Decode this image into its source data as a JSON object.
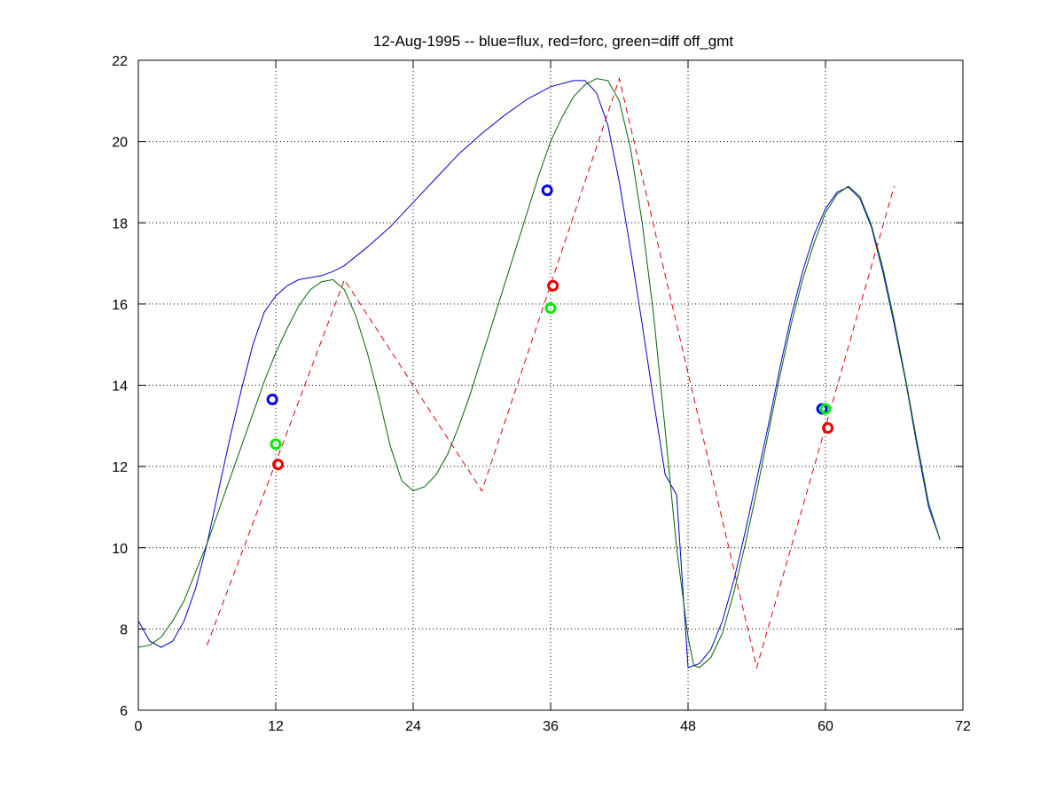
{
  "chart_data": {
    "type": "line",
    "title": "12-Aug-1995 -- blue=flux, red=forc, green=diff off_gmt",
    "xlabel": "",
    "ylabel": "",
    "xlim": [
      0,
      72
    ],
    "ylim": [
      6,
      22
    ],
    "xticks": [
      0,
      12,
      24,
      36,
      48,
      60,
      72
    ],
    "yticks": [
      6,
      8,
      10,
      12,
      14,
      16,
      18,
      20,
      22
    ],
    "grid": true,
    "series": [
      {
        "color": "#0000cc",
        "style": "solid",
        "points": [
          [
            0,
            8.2
          ],
          [
            1,
            7.7
          ],
          [
            2,
            7.55
          ],
          [
            3,
            7.7
          ],
          [
            4,
            8.2
          ],
          [
            5,
            9.0
          ],
          [
            6,
            10.1
          ],
          [
            7,
            11.4
          ],
          [
            8,
            12.7
          ],
          [
            9,
            13.9
          ],
          [
            10,
            15.0
          ],
          [
            11,
            15.8
          ],
          [
            12,
            16.2
          ],
          [
            13,
            16.45
          ],
          [
            14,
            16.6
          ],
          [
            15,
            16.65
          ],
          [
            16,
            16.7
          ],
          [
            17,
            16.8
          ],
          [
            18,
            16.95
          ],
          [
            20,
            17.4
          ],
          [
            22,
            17.9
          ],
          [
            24,
            18.5
          ],
          [
            26,
            19.1
          ],
          [
            28,
            19.7
          ],
          [
            30,
            20.2
          ],
          [
            32,
            20.65
          ],
          [
            34,
            21.05
          ],
          [
            36,
            21.35
          ],
          [
            38,
            21.5
          ],
          [
            39,
            21.5
          ],
          [
            40,
            21.2
          ],
          [
            41,
            20.4
          ],
          [
            42,
            19.0
          ],
          [
            43,
            17.3
          ],
          [
            44,
            15.5
          ],
          [
            45,
            13.6
          ],
          [
            46,
            11.8
          ],
          [
            47,
            11.3
          ],
          [
            48,
            7.05
          ],
          [
            49,
            7.15
          ],
          [
            50,
            7.5
          ],
          [
            51,
            8.2
          ],
          [
            52,
            9.2
          ],
          [
            53,
            10.4
          ],
          [
            54,
            11.7
          ],
          [
            55,
            13.0
          ],
          [
            56,
            14.4
          ],
          [
            57,
            15.7
          ],
          [
            58,
            16.8
          ],
          [
            59,
            17.7
          ],
          [
            60,
            18.35
          ],
          [
            61,
            18.75
          ],
          [
            62,
            18.88
          ],
          [
            63,
            18.6
          ],
          [
            64,
            17.9
          ],
          [
            65,
            16.8
          ],
          [
            66,
            15.5
          ],
          [
            67,
            14.1
          ],
          [
            68,
            12.5
          ],
          [
            69,
            11.0
          ],
          [
            70,
            10.2
          ]
        ]
      },
      {
        "color": "#006600",
        "style": "solid",
        "points": [
          [
            0,
            7.55
          ],
          [
            1,
            7.6
          ],
          [
            2,
            7.8
          ],
          [
            3,
            8.2
          ],
          [
            4,
            8.7
          ],
          [
            5,
            9.4
          ],
          [
            6,
            10.1
          ],
          [
            7,
            10.9
          ],
          [
            8,
            11.7
          ],
          [
            9,
            12.5
          ],
          [
            10,
            13.3
          ],
          [
            11,
            14.1
          ],
          [
            12,
            14.8
          ],
          [
            13,
            15.4
          ],
          [
            14,
            15.95
          ],
          [
            15,
            16.35
          ],
          [
            16,
            16.55
          ],
          [
            17,
            16.6
          ],
          [
            18,
            16.35
          ],
          [
            19,
            15.7
          ],
          [
            20,
            14.8
          ],
          [
            21,
            13.7
          ],
          [
            22,
            12.5
          ],
          [
            23,
            11.65
          ],
          [
            24,
            11.4
          ],
          [
            25,
            11.5
          ],
          [
            26,
            11.8
          ],
          [
            27,
            12.3
          ],
          [
            28,
            13.0
          ],
          [
            29,
            13.8
          ],
          [
            30,
            14.7
          ],
          [
            31,
            15.6
          ],
          [
            32,
            16.5
          ],
          [
            33,
            17.4
          ],
          [
            34,
            18.3
          ],
          [
            35,
            19.2
          ],
          [
            36,
            20.0
          ],
          [
            37,
            20.6
          ],
          [
            38,
            21.1
          ],
          [
            39,
            21.4
          ],
          [
            40,
            21.55
          ],
          [
            41,
            21.5
          ],
          [
            42,
            21.0
          ],
          [
            43,
            19.8
          ],
          [
            44,
            18.0
          ],
          [
            45,
            15.7
          ],
          [
            46,
            12.9
          ],
          [
            47,
            10.0
          ],
          [
            48,
            7.8
          ],
          [
            48.5,
            7.1
          ],
          [
            49,
            7.05
          ],
          [
            50,
            7.3
          ],
          [
            51,
            7.9
          ],
          [
            52,
            8.9
          ],
          [
            53,
            10.1
          ],
          [
            54,
            11.4
          ],
          [
            55,
            12.8
          ],
          [
            56,
            14.2
          ],
          [
            57,
            15.5
          ],
          [
            58,
            16.6
          ],
          [
            59,
            17.5
          ],
          [
            60,
            18.25
          ],
          [
            61,
            18.7
          ],
          [
            62,
            18.9
          ],
          [
            63,
            18.65
          ],
          [
            64,
            17.95
          ],
          [
            65,
            16.9
          ],
          [
            66,
            15.6
          ],
          [
            67,
            14.15
          ],
          [
            68,
            12.6
          ],
          [
            69,
            11.1
          ],
          [
            70,
            10.2
          ]
        ]
      },
      {
        "color": "#dd0000",
        "style": "dashed",
        "points": [
          [
            6,
            7.6
          ],
          [
            18,
            16.6
          ],
          [
            30,
            11.4
          ],
          [
            42,
            21.55
          ],
          [
            54,
            7.05
          ],
          [
            66,
            18.9
          ]
        ]
      }
    ],
    "markers": [
      {
        "x": 11.7,
        "y": 13.65,
        "color": "#0000ee"
      },
      {
        "x": 12.0,
        "y": 12.55,
        "color": "#00ee00"
      },
      {
        "x": 12.2,
        "y": 12.05,
        "color": "#ee0000"
      },
      {
        "x": 35.7,
        "y": 18.8,
        "color": "#0000ee"
      },
      {
        "x": 36.2,
        "y": 16.45,
        "color": "#ee0000"
      },
      {
        "x": 36.0,
        "y": 15.9,
        "color": "#00ee00"
      },
      {
        "x": 59.7,
        "y": 13.42,
        "color": "#0000ee"
      },
      {
        "x": 60.0,
        "y": 13.42,
        "color": "#00ee00"
      },
      {
        "x": 60.2,
        "y": 12.95,
        "color": "#ee0000"
      }
    ]
  }
}
